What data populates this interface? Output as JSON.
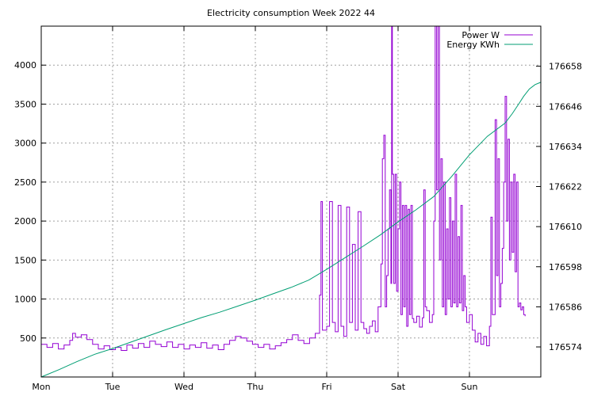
{
  "chart_data": {
    "type": "line",
    "title": "Electricity consumption Week 2022 44",
    "x_axis": {
      "range": [
        0,
        7
      ],
      "ticks": [
        {
          "pos": 0,
          "label": "Mon"
        },
        {
          "pos": 1,
          "label": "Tue"
        },
        {
          "pos": 2,
          "label": "Wed"
        },
        {
          "pos": 3,
          "label": "Thu"
        },
        {
          "pos": 4,
          "label": "Fri"
        },
        {
          "pos": 5,
          "label": "Sat"
        },
        {
          "pos": 6,
          "label": "Sun"
        }
      ]
    },
    "y_left": {
      "range": [
        0,
        4500
      ],
      "ticks": [
        500,
        1000,
        1500,
        2000,
        2500,
        3000,
        3500,
        4000
      ]
    },
    "y_right": {
      "range": [
        176565,
        176670
      ],
      "ticks": [
        176574,
        176586,
        176598,
        176610,
        176622,
        176634,
        176646,
        176658
      ]
    },
    "grid": true,
    "legend_position": "top-right",
    "series": [
      {
        "name": "Power W",
        "axis": "left",
        "color": "#9400d3",
        "points": [
          [
            0.0,
            420
          ],
          [
            0.08,
            380
          ],
          [
            0.16,
            430
          ],
          [
            0.24,
            360
          ],
          [
            0.32,
            410
          ],
          [
            0.4,
            470
          ],
          [
            0.44,
            560
          ],
          [
            0.48,
            510
          ],
          [
            0.56,
            540
          ],
          [
            0.64,
            480
          ],
          [
            0.72,
            420
          ],
          [
            0.8,
            360
          ],
          [
            0.88,
            400
          ],
          [
            0.96,
            350
          ],
          [
            1.04,
            380
          ],
          [
            1.12,
            340
          ],
          [
            1.2,
            410
          ],
          [
            1.28,
            370
          ],
          [
            1.36,
            430
          ],
          [
            1.44,
            380
          ],
          [
            1.52,
            460
          ],
          [
            1.6,
            420
          ],
          [
            1.68,
            390
          ],
          [
            1.76,
            450
          ],
          [
            1.84,
            380
          ],
          [
            1.92,
            420
          ],
          [
            2.0,
            360
          ],
          [
            2.08,
            410
          ],
          [
            2.16,
            380
          ],
          [
            2.24,
            440
          ],
          [
            2.32,
            370
          ],
          [
            2.4,
            410
          ],
          [
            2.48,
            350
          ],
          [
            2.56,
            420
          ],
          [
            2.64,
            470
          ],
          [
            2.72,
            520
          ],
          [
            2.8,
            500
          ],
          [
            2.88,
            460
          ],
          [
            2.96,
            420
          ],
          [
            3.04,
            380
          ],
          [
            3.12,
            420
          ],
          [
            3.2,
            360
          ],
          [
            3.28,
            400
          ],
          [
            3.36,
            440
          ],
          [
            3.44,
            480
          ],
          [
            3.52,
            540
          ],
          [
            3.6,
            470
          ],
          [
            3.68,
            430
          ],
          [
            3.76,
            500
          ],
          [
            3.84,
            560
          ],
          [
            3.9,
            1050
          ],
          [
            3.92,
            2250
          ],
          [
            3.94,
            600
          ],
          [
            4.0,
            650
          ],
          [
            4.04,
            2250
          ],
          [
            4.08,
            700
          ],
          [
            4.12,
            580
          ],
          [
            4.16,
            2200
          ],
          [
            4.2,
            650
          ],
          [
            4.24,
            520
          ],
          [
            4.28,
            2180
          ],
          [
            4.32,
            700
          ],
          [
            4.36,
            1700
          ],
          [
            4.4,
            600
          ],
          [
            4.44,
            2120
          ],
          [
            4.48,
            700
          ],
          [
            4.52,
            620
          ],
          [
            4.56,
            560
          ],
          [
            4.6,
            650
          ],
          [
            4.64,
            720
          ],
          [
            4.68,
            580
          ],
          [
            4.72,
            900
          ],
          [
            4.76,
            1450
          ],
          [
            4.78,
            2800
          ],
          [
            4.8,
            3100
          ],
          [
            4.82,
            900
          ],
          [
            4.84,
            1300
          ],
          [
            4.86,
            1900
          ],
          [
            4.88,
            2400
          ],
          [
            4.9,
            1200
          ],
          [
            4.91,
            4500
          ],
          [
            4.92,
            2600
          ],
          [
            4.94,
            1200
          ],
          [
            4.96,
            2600
          ],
          [
            4.98,
            1100
          ],
          [
            5.0,
            1900
          ],
          [
            5.02,
            2500
          ],
          [
            5.04,
            800
          ],
          [
            5.06,
            2200
          ],
          [
            5.08,
            900
          ],
          [
            5.1,
            2200
          ],
          [
            5.12,
            650
          ],
          [
            5.14,
            2150
          ],
          [
            5.16,
            800
          ],
          [
            5.18,
            2200
          ],
          [
            5.2,
            750
          ],
          [
            5.22,
            700
          ],
          [
            5.26,
            780
          ],
          [
            5.3,
            640
          ],
          [
            5.34,
            760
          ],
          [
            5.36,
            2400
          ],
          [
            5.38,
            900
          ],
          [
            5.4,
            850
          ],
          [
            5.44,
            700
          ],
          [
            5.48,
            800
          ],
          [
            5.5,
            2000
          ],
          [
            5.52,
            4500
          ],
          [
            5.54,
            2400
          ],
          [
            5.56,
            4500
          ],
          [
            5.58,
            1500
          ],
          [
            5.6,
            2800
          ],
          [
            5.62,
            900
          ],
          [
            5.64,
            2500
          ],
          [
            5.66,
            800
          ],
          [
            5.68,
            1900
          ],
          [
            5.7,
            1000
          ],
          [
            5.72,
            2300
          ],
          [
            5.74,
            900
          ],
          [
            5.76,
            2000
          ],
          [
            5.78,
            950
          ],
          [
            5.8,
            2600
          ],
          [
            5.82,
            900
          ],
          [
            5.84,
            1800
          ],
          [
            5.86,
            950
          ],
          [
            5.88,
            2200
          ],
          [
            5.9,
            850
          ],
          [
            5.92,
            1300
          ],
          [
            5.94,
            900
          ],
          [
            5.96,
            700
          ],
          [
            6.0,
            800
          ],
          [
            6.04,
            600
          ],
          [
            6.08,
            450
          ],
          [
            6.12,
            560
          ],
          [
            6.16,
            420
          ],
          [
            6.2,
            520
          ],
          [
            6.24,
            400
          ],
          [
            6.28,
            650
          ],
          [
            6.3,
            2050
          ],
          [
            6.32,
            800
          ],
          [
            6.36,
            3300
          ],
          [
            6.38,
            1300
          ],
          [
            6.4,
            2800
          ],
          [
            6.42,
            900
          ],
          [
            6.44,
            1200
          ],
          [
            6.46,
            1650
          ],
          [
            6.48,
            2500
          ],
          [
            6.5,
            3600
          ],
          [
            6.52,
            2000
          ],
          [
            6.54,
            3050
          ],
          [
            6.56,
            1500
          ],
          [
            6.58,
            2500
          ],
          [
            6.6,
            1600
          ],
          [
            6.62,
            2600
          ],
          [
            6.64,
            1350
          ],
          [
            6.66,
            2500
          ],
          [
            6.68,
            900
          ],
          [
            6.7,
            950
          ],
          [
            6.72,
            860
          ],
          [
            6.74,
            900
          ],
          [
            6.76,
            800
          ],
          [
            6.78,
            780
          ]
        ]
      },
      {
        "name": "Energy KWh",
        "axis": "right",
        "color": "#009e73",
        "points": [
          [
            0.0,
            176565.0
          ],
          [
            0.25,
            176567.2
          ],
          [
            0.5,
            176569.6
          ],
          [
            0.75,
            176571.8
          ],
          [
            1.0,
            176573.5
          ],
          [
            1.25,
            176575.4
          ],
          [
            1.5,
            176577.3
          ],
          [
            1.75,
            176579.2
          ],
          [
            2.0,
            176581.0
          ],
          [
            2.25,
            176582.8
          ],
          [
            2.5,
            176584.4
          ],
          [
            2.75,
            176586.2
          ],
          [
            3.0,
            176588.0
          ],
          [
            3.25,
            176589.9
          ],
          [
            3.5,
            176591.8
          ],
          [
            3.75,
            176594.0
          ],
          [
            4.0,
            176597.2
          ],
          [
            4.25,
            176600.6
          ],
          [
            4.5,
            176604.0
          ],
          [
            4.75,
            176607.5
          ],
          [
            5.0,
            176611.4
          ],
          [
            5.25,
            176615.0
          ],
          [
            5.5,
            176619.0
          ],
          [
            5.75,
            176625.0
          ],
          [
            6.0,
            176631.5
          ],
          [
            6.25,
            176637.0
          ],
          [
            6.5,
            176641.0
          ],
          [
            6.6,
            176643.8
          ],
          [
            6.7,
            176647.0
          ],
          [
            6.76,
            176649.0
          ],
          [
            6.84,
            176651.2
          ],
          [
            6.92,
            176652.5
          ],
          [
            7.0,
            176653.2
          ]
        ]
      }
    ]
  }
}
